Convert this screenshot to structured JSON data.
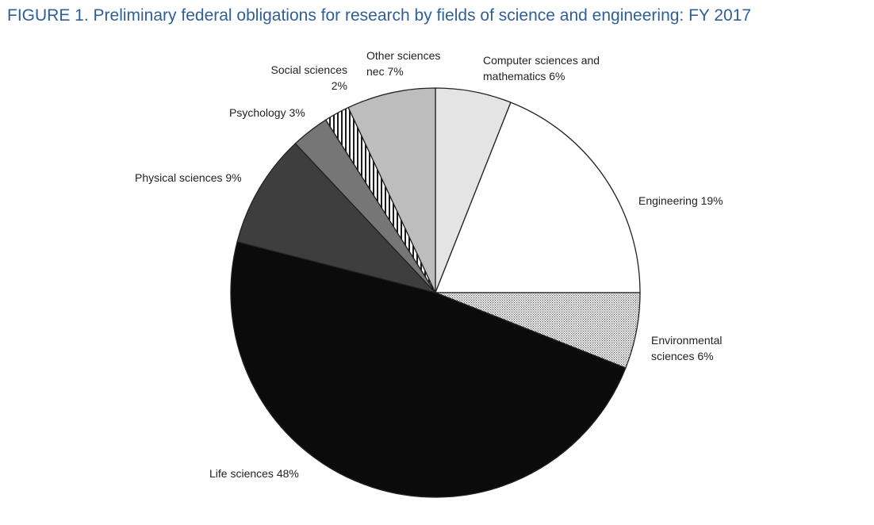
{
  "chart_data": {
    "type": "pie",
    "title": "FIGURE 1. Preliminary federal obligations for research by fields of science and engineering: FY 2017",
    "slices": [
      {
        "name": "Computer sciences and mathematics",
        "value": 6,
        "label_lines": [
          "Computer sciences and",
          "mathematics 6%"
        ],
        "fill": "#e4e4e4",
        "pattern": "none"
      },
      {
        "name": "Engineering",
        "value": 19,
        "label_lines": [
          "Engineering 19%"
        ],
        "fill": "#ffffff",
        "pattern": "none"
      },
      {
        "name": "Environmental sciences",
        "value": 6,
        "label_lines": [
          "Environmental",
          "sciences 6%"
        ],
        "fill": "#ffffff",
        "pattern": "dots"
      },
      {
        "name": "Life sciences",
        "value": 48,
        "label_lines": [
          "Life sciences 48%"
        ],
        "fill": "#0b0b0b",
        "pattern": "none"
      },
      {
        "name": "Physical sciences",
        "value": 9,
        "label_lines": [
          "Physical sciences 9%"
        ],
        "fill": "#3e3e3e",
        "pattern": "none"
      },
      {
        "name": "Psychology",
        "value": 3,
        "label_lines": [
          "Psychology 3%"
        ],
        "fill": "#767676",
        "pattern": "none"
      },
      {
        "name": "Social sciences",
        "value": 2,
        "label_lines": [
          "Social sciences",
          "2%"
        ],
        "fill": "#ffffff",
        "pattern": "vertical-stripes"
      },
      {
        "name": "Other sciences nec",
        "value": 7,
        "label_lines": [
          "Other sciences",
          "nec 7%"
        ],
        "fill": "#bdbdbd",
        "pattern": "none"
      }
    ],
    "start": "12 o'clock",
    "direction": "clockwise",
    "title_color": "#2f5f97",
    "outline_color": "#222222"
  }
}
